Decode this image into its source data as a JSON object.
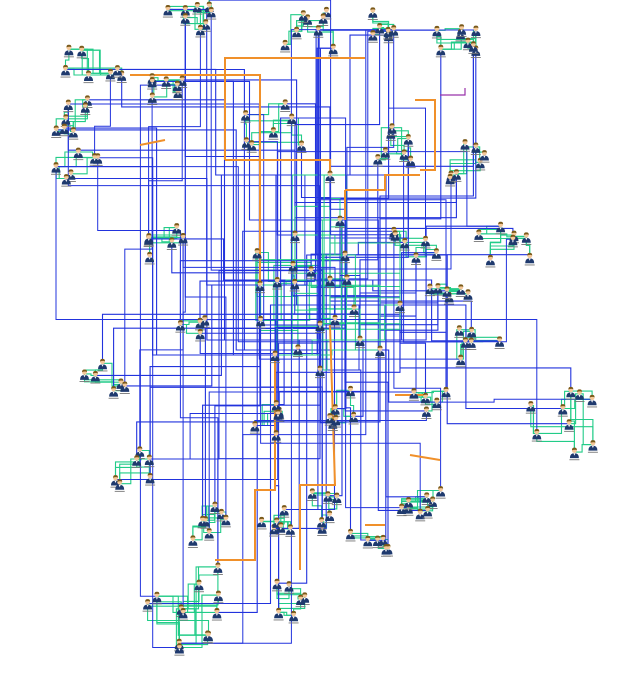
{
  "diagram": {
    "type": "organizational-network",
    "node_icon": "user-icon",
    "edge_colors": {
      "primary": "#2233dd",
      "secondary": "#22cc88",
      "highlight": "#f0902a",
      "accent": "#9933aa"
    },
    "icon_colors": {
      "hair": "#7a5a1a",
      "skin": "#f4c89a",
      "body": "#1f3a6e",
      "shirt": "#ffffff"
    },
    "background": "#ffffff"
  }
}
